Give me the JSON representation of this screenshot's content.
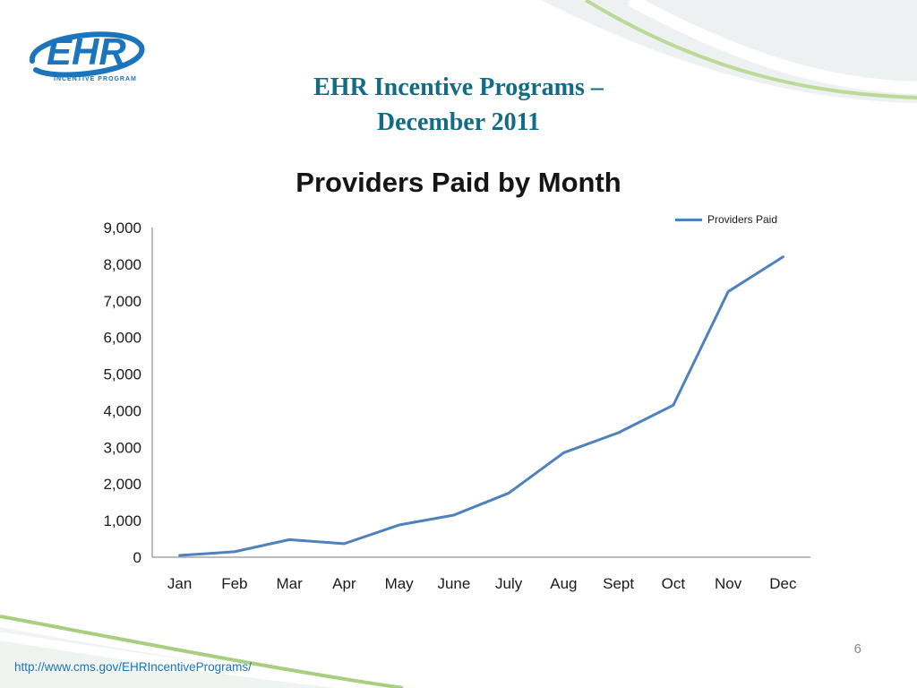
{
  "header": {
    "title_line1": "EHR Incentive Programs –",
    "title_line2": "December 2011"
  },
  "logo": {
    "text": "EHR",
    "subtext": "INCENTIVE PROGRAM"
  },
  "footer": {
    "link": "http://www.cms.gov/EHRIncentivePrograms/",
    "page_number": "6"
  },
  "chart_data": {
    "type": "line",
    "title": "Providers Paid by Month",
    "xlabel": "",
    "ylabel": "",
    "categories": [
      "Jan",
      "Feb",
      "Mar",
      "Apr",
      "May",
      "June",
      "July",
      "Aug",
      "Sept",
      "Oct",
      "Nov",
      "Dec"
    ],
    "series": [
      {
        "name": "Providers Paid",
        "color": "#4F81BD",
        "values": [
          50,
          150,
          480,
          370,
          880,
          1150,
          1750,
          2850,
          3400,
          4150,
          7250,
          8200
        ]
      }
    ],
    "ylim": [
      0,
      9000
    ],
    "ytick_interval": 1000,
    "ytick_labels": [
      "9,000",
      "8,000",
      "7,000",
      "6,000",
      "5,000",
      "4,000",
      "3,000",
      "2,000",
      "1,000",
      "0"
    ],
    "grid": false,
    "legend_position": "top-right",
    "axis_color": "#a6a6a6"
  }
}
